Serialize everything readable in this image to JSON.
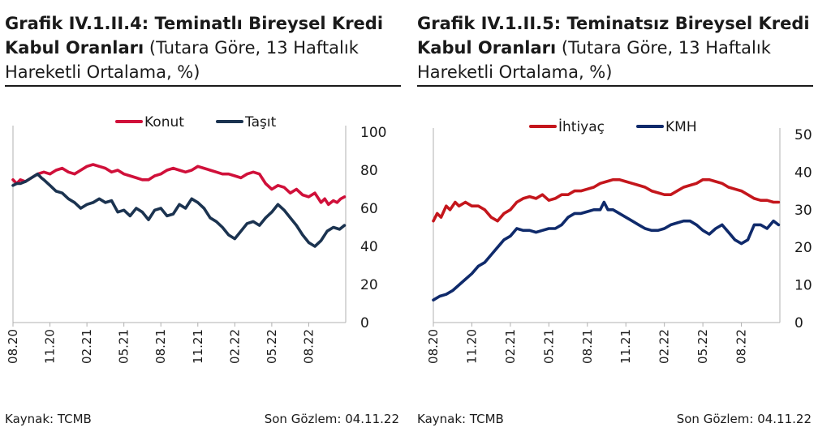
{
  "panels": [
    {
      "title_bold": "Grafik IV.1.II.4: Teminatlı Bireysel Kredi Kabul Oranları",
      "title_rest": " (Tutara Göre, 13 Haftalık Hareketli Ortalama, %)",
      "source": "Kaynak: TCMB",
      "last_obs": "Son Gözlem: 04.11.22"
    },
    {
      "title_bold": "Grafik IV.1.II.5: Teminatsız Bireysel Kredi Kabul Oranları",
      "title_rest": " (Tutara Göre, 13 Haftalık Hareketli Ortalama, %)",
      "source": "Kaynak: TCMB",
      "last_obs": "Son Gözlem: 04.11.22"
    }
  ],
  "chart_data": [
    {
      "type": "line",
      "x_ticks": [
        "08.20",
        "11.20",
        "02.21",
        "05.21",
        "08.21",
        "11.21",
        "02.22",
        "05.22",
        "08.22"
      ],
      "x_range": [
        0,
        27
      ],
      "y_ticks": [
        0,
        20,
        40,
        60,
        80,
        100
      ],
      "ylim": [
        0,
        100
      ],
      "y_axis_side": "right",
      "legend_position": "top",
      "grid": false,
      "series": [
        {
          "name": "Konut",
          "color": "#d0103a",
          "x": [
            0,
            0.3,
            0.6,
            1.0,
            1.5,
            2.0,
            2.5,
            3.0,
            3.5,
            4.0,
            4.5,
            5.0,
            5.5,
            6.0,
            6.5,
            7.0,
            7.5,
            8.0,
            8.5,
            9.0,
            9.5,
            10.0,
            10.5,
            11.0,
            11.5,
            12.0,
            12.5,
            13.0,
            13.5,
            14.0,
            14.5,
            15.0,
            15.5,
            16.0,
            16.5,
            17.0,
            17.5,
            18.0,
            18.5,
            19.0,
            19.5,
            20.0,
            20.5,
            21.0,
            21.5,
            22.0,
            22.5,
            23.0,
            23.5,
            24.0,
            24.5,
            25.0,
            25.3,
            25.6,
            26.0,
            26.3,
            26.6,
            26.9
          ],
          "values": [
            75,
            73,
            75,
            74,
            76,
            78,
            79,
            78,
            80,
            81,
            79,
            78,
            80,
            82,
            83,
            82,
            81,
            79,
            80,
            78,
            77,
            76,
            75,
            75,
            77,
            78,
            80,
            81,
            80,
            79,
            80,
            82,
            81,
            80,
            79,
            78,
            78,
            77,
            76,
            78,
            79,
            78,
            73,
            70,
            72,
            71,
            68,
            70,
            67,
            66,
            68,
            63,
            65,
            62,
            64,
            63,
            65,
            66
          ]
        },
        {
          "name": "Taşıt",
          "color": "#1b3350",
          "x": [
            0,
            0.3,
            0.6,
            1.0,
            1.5,
            2.0,
            2.3,
            2.5,
            3.0,
            3.5,
            4.0,
            4.5,
            5.0,
            5.5,
            6.0,
            6.5,
            7.0,
            7.5,
            8.0,
            8.5,
            9.0,
            9.5,
            10.0,
            10.5,
            11.0,
            11.5,
            12.0,
            12.5,
            13.0,
            13.5,
            14.0,
            14.5,
            15.0,
            15.5,
            16.0,
            16.5,
            17.0,
            17.5,
            18.0,
            18.5,
            19.0,
            19.5,
            20.0,
            20.5,
            21.0,
            21.5,
            22.0,
            22.5,
            23.0,
            23.5,
            24.0,
            24.5,
            25.0,
            25.5,
            26.0,
            26.5,
            26.9
          ],
          "values": [
            72,
            73,
            73,
            74,
            76,
            78,
            76,
            75,
            72,
            69,
            68,
            65,
            63,
            60,
            62,
            63,
            65,
            63,
            64,
            58,
            59,
            56,
            60,
            58,
            54,
            59,
            60,
            56,
            57,
            62,
            60,
            65,
            63,
            60,
            55,
            53,
            50,
            46,
            44,
            48,
            52,
            53,
            51,
            55,
            58,
            62,
            59,
            55,
            51,
            46,
            42,
            40,
            43,
            48,
            50,
            49,
            51
          ]
        }
      ]
    },
    {
      "type": "line",
      "x_ticks": [
        "08.20",
        "11.20",
        "02.21",
        "05.21",
        "08.21",
        "11.21",
        "02.22",
        "05.22",
        "08.22"
      ],
      "x_range": [
        0,
        27
      ],
      "y_ticks": [
        0,
        10,
        20,
        30,
        40,
        50
      ],
      "ylim": [
        0,
        50
      ],
      "y_axis_side": "right",
      "legend_position": "top",
      "grid": false,
      "series": [
        {
          "name": "İhtiyaç",
          "color": "#c4161c",
          "x": [
            0,
            0.3,
            0.6,
            1.0,
            1.3,
            1.7,
            2.0,
            2.5,
            3.0,
            3.5,
            4.0,
            4.5,
            5.0,
            5.5,
            6.0,
            6.5,
            7.0,
            7.5,
            8.0,
            8.5,
            9.0,
            9.5,
            10.0,
            10.5,
            11.0,
            11.5,
            12.0,
            12.5,
            13.0,
            13.5,
            14.0,
            14.5,
            15.0,
            15.5,
            16.0,
            16.5,
            17.0,
            17.5,
            18.0,
            18.5,
            19.0,
            19.5,
            20.0,
            20.5,
            21.0,
            21.5,
            22.0,
            22.5,
            23.0,
            23.5,
            24.0,
            24.5,
            25.0,
            25.5,
            26.0,
            26.5,
            26.9
          ],
          "values": [
            27,
            29,
            28,
            31,
            30,
            32,
            31,
            32,
            31,
            31,
            30,
            28,
            27,
            29,
            30,
            32,
            33,
            33.5,
            33,
            34,
            32.5,
            33,
            34,
            34,
            35,
            35,
            35.5,
            36,
            37,
            37.5,
            38,
            38,
            37.5,
            37,
            36.5,
            36,
            35,
            34.5,
            34,
            34,
            35,
            36,
            36.5,
            37,
            38,
            38,
            37.5,
            37,
            36,
            35.5,
            35,
            34,
            33,
            32.5,
            32.5,
            32,
            32
          ]
        },
        {
          "name": "KMH",
          "color": "#0f2a6b",
          "x": [
            0,
            0.5,
            1.0,
            1.5,
            2.0,
            2.5,
            3.0,
            3.5,
            4.0,
            4.5,
            5.0,
            5.5,
            6.0,
            6.5,
            7.0,
            7.5,
            8.0,
            8.5,
            9.0,
            9.5,
            10.0,
            10.5,
            11.0,
            11.5,
            12.0,
            12.5,
            13.0,
            13.3,
            13.6,
            14.0,
            14.5,
            15.0,
            15.5,
            16.0,
            16.5,
            17.0,
            17.5,
            18.0,
            18.5,
            19.0,
            19.5,
            20.0,
            20.5,
            21.0,
            21.5,
            22.0,
            22.5,
            23.0,
            23.5,
            24.0,
            24.5,
            25.0,
            25.5,
            26.0,
            26.5,
            26.9
          ],
          "values": [
            6,
            7,
            7.5,
            8.5,
            10,
            11.5,
            13,
            15,
            16,
            18,
            20,
            22,
            23,
            25,
            24.5,
            24.5,
            24,
            24.5,
            25,
            25,
            26,
            28,
            29,
            29,
            29.5,
            30,
            30,
            32,
            30,
            30,
            29,
            28,
            27,
            26,
            25,
            24.5,
            24.5,
            25,
            26,
            26.5,
            27,
            27,
            26,
            24.5,
            23.5,
            25,
            26,
            24,
            22,
            21,
            22,
            26,
            26,
            25,
            27,
            26
          ]
        }
      ]
    }
  ]
}
